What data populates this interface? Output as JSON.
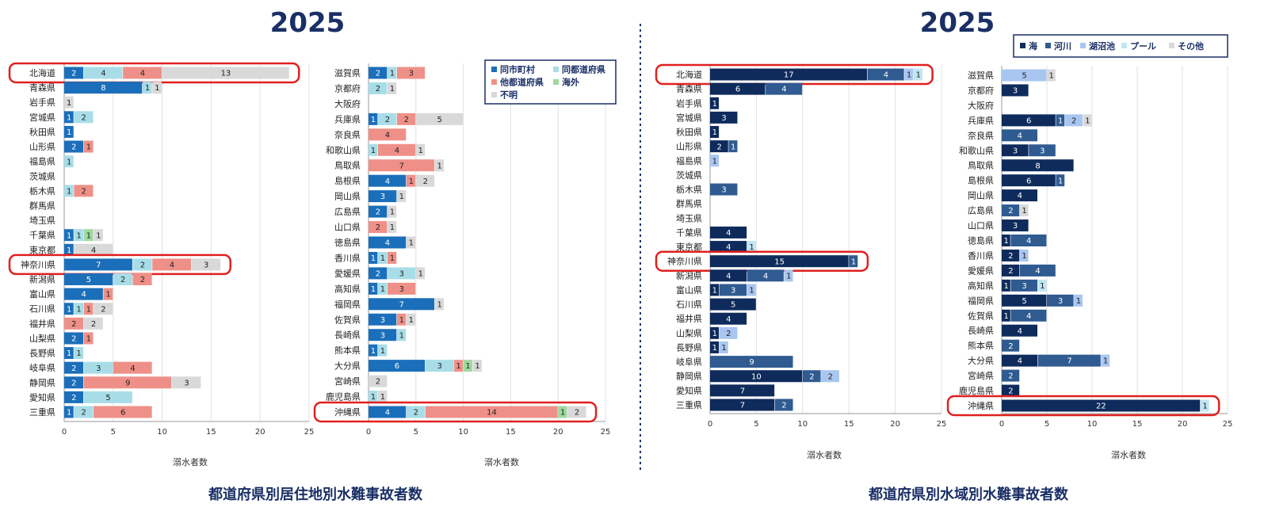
{
  "chart_data": [
    {
      "type": "bar",
      "orientation": "horizontal",
      "stacked": true,
      "year": "2025",
      "title": "都道府県別居住地別水難事故者数",
      "xlabel": "溺水者数",
      "xlim": [
        0,
        25
      ],
      "xticks": [
        "0",
        "5",
        "10",
        "15",
        "20",
        "25"
      ],
      "grid": true,
      "legend_position": "top-right",
      "highlighted": [
        "北海道",
        "神奈川県",
        "沖縄県"
      ],
      "series": [
        {
          "name": "同市町村",
          "color": "#1b6fba"
        },
        {
          "name": "同都道府県",
          "color": "#a8dde8"
        },
        {
          "name": "他都道府県",
          "color": "#ef9088"
        },
        {
          "name": "海外",
          "color": "#9ed9a0"
        },
        {
          "name": "不明",
          "color": "#d9d9d9"
        }
      ],
      "panels": [
        {
          "categories": [
            "北海道",
            "青森県",
            "岩手県",
            "宮城県",
            "秋田県",
            "山形県",
            "福島県",
            "茨城県",
            "栃木県",
            "群馬県",
            "埼玉県",
            "千葉県",
            "東京都",
            "神奈川県",
            "新潟県",
            "富山県",
            "石川県",
            "福井県",
            "山梨県",
            "長野県",
            "岐阜県",
            "静岡県",
            "愛知県",
            "三重県"
          ],
          "values": [
            [
              2,
              8,
              0,
              1,
              1,
              2,
              0,
              0,
              0,
              0,
              0,
              1,
              1,
              7,
              5,
              4,
              1,
              0,
              2,
              1,
              2,
              2,
              2,
              1
            ],
            [
              4,
              1,
              0,
              2,
              0,
              0,
              1,
              0,
              1,
              0,
              0,
              1,
              0,
              2,
              2,
              0,
              1,
              0,
              0,
              1,
              3,
              0,
              5,
              2
            ],
            [
              4,
              0,
              0,
              0,
              0,
              1,
              0,
              0,
              2,
              0,
              0,
              0,
              0,
              4,
              2,
              1,
              1,
              2,
              1,
              0,
              4,
              9,
              0,
              6
            ],
            [
              0,
              0,
              0,
              0,
              0,
              0,
              0,
              0,
              0,
              0,
              0,
              1,
              0,
              0,
              0,
              0,
              0,
              0,
              0,
              0,
              0,
              0,
              0,
              0
            ],
            [
              13,
              1,
              1,
              0,
              0,
              0,
              0,
              0,
              0,
              0,
              0,
              1,
              4,
              3,
              0,
              0,
              2,
              2,
              0,
              0,
              0,
              3,
              0,
              0
            ]
          ]
        },
        {
          "categories": [
            "滋賀県",
            "京都府",
            "大阪府",
            "兵庫県",
            "奈良県",
            "和歌山県",
            "鳥取県",
            "島根県",
            "岡山県",
            "広島県",
            "山口県",
            "徳島県",
            "香川県",
            "愛媛県",
            "高知県",
            "福岡県",
            "佐賀県",
            "長崎県",
            "熊本県",
            "大分県",
            "宮崎県",
            "鹿児島県",
            "沖縄県"
          ],
          "values": [
            [
              2,
              0,
              0,
              1,
              0,
              0,
              0,
              4,
              3,
              2,
              0,
              4,
              1,
              2,
              1,
              7,
              3,
              3,
              1,
              6,
              0,
              0,
              4
            ],
            [
              1,
              2,
              0,
              2,
              0,
              1,
              0,
              0,
              0,
              0,
              0,
              0,
              1,
              3,
              1,
              0,
              0,
              1,
              1,
              3,
              0,
              1,
              2
            ],
            [
              3,
              0,
              0,
              2,
              4,
              4,
              7,
              1,
              0,
              0,
              2,
              0,
              1,
              0,
              3,
              0,
              1,
              0,
              0,
              1,
              0,
              0,
              14
            ],
            [
              0,
              0,
              0,
              0,
              0,
              0,
              0,
              0,
              0,
              0,
              0,
              0,
              0,
              0,
              0,
              0,
              0,
              0,
              0,
              1,
              0,
              0,
              1
            ],
            [
              0,
              1,
              0,
              5,
              0,
              1,
              1,
              2,
              1,
              1,
              1,
              1,
              0,
              1,
              0,
              1,
              1,
              0,
              0,
              1,
              2,
              1,
              2
            ]
          ]
        }
      ]
    },
    {
      "type": "bar",
      "orientation": "horizontal",
      "stacked": true,
      "year": "2025",
      "title": "都道府県別水域別水難事故者数",
      "xlabel": "溺水者数",
      "xlim": [
        0,
        25
      ],
      "xticks": [
        "0",
        "5",
        "10",
        "15",
        "20",
        "25"
      ],
      "grid": true,
      "legend_position": "top-right",
      "highlighted": [
        "北海道",
        "神奈川県",
        "沖縄県"
      ],
      "series": [
        {
          "name": "海",
          "color": "#0e2b5c"
        },
        {
          "name": "河川",
          "color": "#2f5b91"
        },
        {
          "name": "湖沼池",
          "color": "#a9c6f0"
        },
        {
          "name": "プール",
          "color": "#bfe6f2"
        },
        {
          "name": "その他",
          "color": "#d9d9d9"
        }
      ],
      "panels": [
        {
          "categories": [
            "北海道",
            "青森県",
            "岩手県",
            "宮城県",
            "秋田県",
            "山形県",
            "福島県",
            "茨城県",
            "栃木県",
            "群馬県",
            "埼玉県",
            "千葉県",
            "東京都",
            "神奈川県",
            "新潟県",
            "富山県",
            "石川県",
            "福井県",
            "山梨県",
            "長野県",
            "岐阜県",
            "静岡県",
            "愛知県",
            "三重県"
          ],
          "values": [
            [
              17,
              6,
              1,
              3,
              1,
              2,
              0,
              0,
              0,
              0,
              0,
              4,
              4,
              15,
              4,
              1,
              5,
              4,
              1,
              1,
              0,
              10,
              7,
              7
            ],
            [
              4,
              4,
              0,
              0,
              0,
              1,
              0,
              0,
              3,
              0,
              0,
              0,
              0,
              1,
              4,
              3,
              0,
              0,
              0,
              0,
              9,
              2,
              0,
              2
            ],
            [
              1,
              0,
              0,
              0,
              0,
              0,
              1,
              0,
              0,
              0,
              0,
              0,
              0,
              0,
              1,
              1,
              0,
              0,
              2,
              1,
              0,
              2,
              0,
              0
            ],
            [
              1,
              0,
              0,
              0,
              0,
              0,
              0,
              0,
              0,
              0,
              0,
              0,
              1,
              0,
              0,
              0,
              0,
              0,
              0,
              0,
              0,
              0,
              0,
              0
            ],
            [
              0,
              0,
              0,
              0,
              0,
              0,
              0,
              0,
              0,
              0,
              0,
              0,
              0,
              0,
              0,
              0,
              0,
              0,
              0,
              0,
              0,
              0,
              0,
              0
            ]
          ]
        },
        {
          "categories": [
            "滋賀県",
            "京都府",
            "大阪府",
            "兵庫県",
            "奈良県",
            "和歌山県",
            "鳥取県",
            "島根県",
            "岡山県",
            "広島県",
            "山口県",
            "徳島県",
            "香川県",
            "愛媛県",
            "高知県",
            "福岡県",
            "佐賀県",
            "長崎県",
            "熊本県",
            "大分県",
            "宮崎県",
            "鹿児島県",
            "沖縄県"
          ],
          "values": [
            [
              0,
              3,
              0,
              6,
              0,
              3,
              8,
              6,
              4,
              0,
              3,
              1,
              2,
              2,
              1,
              5,
              1,
              4,
              0,
              4,
              0,
              2,
              22
            ],
            [
              0,
              0,
              0,
              1,
              4,
              3,
              0,
              1,
              0,
              2,
              0,
              4,
              0,
              4,
              3,
              3,
              4,
              0,
              2,
              7,
              2,
              0,
              0
            ],
            [
              5,
              0,
              0,
              2,
              0,
              0,
              0,
              0,
              0,
              0,
              0,
              0,
              1,
              0,
              0,
              1,
              0,
              0,
              0,
              1,
              0,
              0,
              0
            ],
            [
              0,
              0,
              0,
              0,
              0,
              0,
              0,
              0,
              0,
              0,
              0,
              0,
              0,
              0,
              1,
              0,
              0,
              0,
              0,
              0,
              0,
              0,
              1
            ],
            [
              1,
              0,
              0,
              1,
              0,
              0,
              0,
              0,
              0,
              1,
              0,
              0,
              0,
              0,
              0,
              0,
              0,
              0,
              0,
              0,
              0,
              0,
              0
            ]
          ]
        }
      ]
    }
  ]
}
